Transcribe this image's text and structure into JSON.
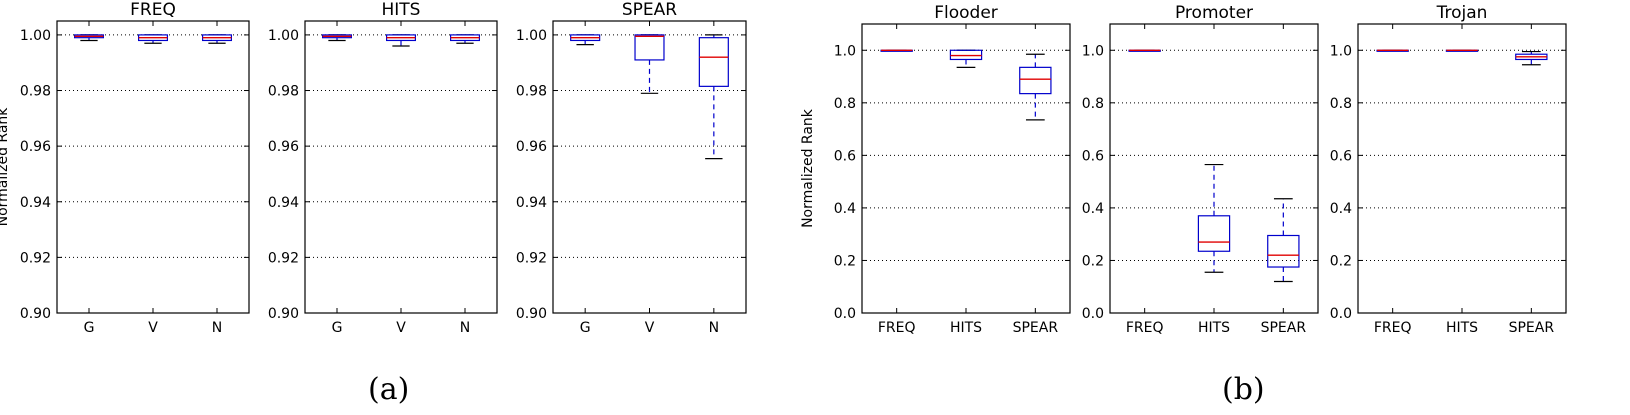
{
  "captions": {
    "a": "(a)",
    "b": "(b)"
  },
  "colors": {
    "box": "#0000cc",
    "median": "#e00000",
    "grid": "#000000",
    "axis": "#000000"
  },
  "chart_data": [
    {
      "type": "box",
      "group": "a",
      "title": "FREQ",
      "ylabel": "Normalized Rank",
      "ylim": [
        0.9,
        1.005
      ],
      "yticks": [
        0.9,
        0.92,
        0.94,
        0.96,
        0.98,
        1.0
      ],
      "ytick_labels": [
        "0.90",
        "0.92",
        "0.94",
        "0.96",
        "0.98",
        "1.00"
      ],
      "grid": true,
      "categories": [
        "G",
        "V",
        "N"
      ],
      "boxes": [
        {
          "whisker_low": 0.998,
          "q1": 0.999,
          "median": 0.9995,
          "q3": 1.0,
          "whisker_high": 1.0
        },
        {
          "whisker_low": 0.997,
          "q1": 0.998,
          "median": 0.999,
          "q3": 1.0,
          "whisker_high": 1.0
        },
        {
          "whisker_low": 0.997,
          "q1": 0.998,
          "median": 0.999,
          "q3": 1.0,
          "whisker_high": 1.0
        }
      ]
    },
    {
      "type": "box",
      "group": "a",
      "title": "HITS",
      "ylabel": "",
      "ylim": [
        0.9,
        1.005
      ],
      "yticks": [
        0.9,
        0.92,
        0.94,
        0.96,
        0.98,
        1.0
      ],
      "ytick_labels": [
        "0.90",
        "0.92",
        "0.94",
        "0.96",
        "0.98",
        "1.00"
      ],
      "grid": true,
      "categories": [
        "G",
        "V",
        "N"
      ],
      "boxes": [
        {
          "whisker_low": 0.998,
          "q1": 0.999,
          "median": 0.9995,
          "q3": 1.0,
          "whisker_high": 1.0
        },
        {
          "whisker_low": 0.996,
          "q1": 0.998,
          "median": 0.999,
          "q3": 1.0,
          "whisker_high": 1.0
        },
        {
          "whisker_low": 0.997,
          "q1": 0.998,
          "median": 0.999,
          "q3": 1.0,
          "whisker_high": 1.0
        }
      ]
    },
    {
      "type": "box",
      "group": "a",
      "title": "SPEAR",
      "ylabel": "",
      "ylim": [
        0.9,
        1.005
      ],
      "yticks": [
        0.9,
        0.92,
        0.94,
        0.96,
        0.98,
        1.0
      ],
      "ytick_labels": [
        "0.90",
        "0.92",
        "0.94",
        "0.96",
        "0.98",
        "1.00"
      ],
      "grid": true,
      "categories": [
        "G",
        "V",
        "N"
      ],
      "boxes": [
        {
          "whisker_low": 0.9965,
          "q1": 0.998,
          "median": 0.999,
          "q3": 1.0,
          "whisker_high": 1.0
        },
        {
          "whisker_low": 0.979,
          "q1": 0.991,
          "median": 0.9995,
          "q3": 1.0,
          "whisker_high": 1.0
        },
        {
          "whisker_low": 0.9555,
          "q1": 0.9815,
          "median": 0.992,
          "q3": 0.999,
          "whisker_high": 1.0
        }
      ]
    },
    {
      "type": "box",
      "group": "b",
      "title": "Flooder",
      "ylabel": "Normalized Rank",
      "ylim": [
        0.0,
        1.1
      ],
      "yticks": [
        0.0,
        0.2,
        0.4,
        0.6,
        0.8,
        1.0
      ],
      "ytick_labels": [
        "0.0",
        "0.2",
        "0.4",
        "0.6",
        "0.8",
        "1.0"
      ],
      "grid": true,
      "categories": [
        "FREQ",
        "HITS",
        "SPEAR"
      ],
      "boxes": [
        {
          "whisker_low": 1.0,
          "q1": 1.0,
          "median": 1.0,
          "q3": 1.0,
          "whisker_high": 1.0
        },
        {
          "whisker_low": 0.935,
          "q1": 0.965,
          "median": 0.98,
          "q3": 1.0,
          "whisker_high": 1.0
        },
        {
          "whisker_low": 0.735,
          "q1": 0.835,
          "median": 0.89,
          "q3": 0.935,
          "whisker_high": 0.985
        }
      ]
    },
    {
      "type": "box",
      "group": "b",
      "title": "Promoter",
      "ylabel": "",
      "ylim": [
        0.0,
        1.1
      ],
      "yticks": [
        0.0,
        0.2,
        0.4,
        0.6,
        0.8,
        1.0
      ],
      "ytick_labels": [
        "0.0",
        "0.2",
        "0.4",
        "0.6",
        "0.8",
        "1.0"
      ],
      "grid": true,
      "categories": [
        "FREQ",
        "HITS",
        "SPEAR"
      ],
      "boxes": [
        {
          "whisker_low": 1.0,
          "q1": 1.0,
          "median": 1.0,
          "q3": 1.0,
          "whisker_high": 1.0
        },
        {
          "whisker_low": 0.155,
          "q1": 0.235,
          "median": 0.27,
          "q3": 0.37,
          "whisker_high": 0.565
        },
        {
          "whisker_low": 0.12,
          "q1": 0.175,
          "median": 0.22,
          "q3": 0.295,
          "whisker_high": 0.435
        }
      ]
    },
    {
      "type": "box",
      "group": "b",
      "title": "Trojan",
      "ylabel": "",
      "ylim": [
        0.0,
        1.1
      ],
      "yticks": [
        0.0,
        0.2,
        0.4,
        0.6,
        0.8,
        1.0
      ],
      "ytick_labels": [
        "0.0",
        "0.2",
        "0.4",
        "0.6",
        "0.8",
        "1.0"
      ],
      "grid": true,
      "categories": [
        "FREQ",
        "HITS",
        "SPEAR"
      ],
      "boxes": [
        {
          "whisker_low": 1.0,
          "q1": 1.0,
          "median": 1.0,
          "q3": 1.0,
          "whisker_high": 1.0
        },
        {
          "whisker_low": 1.0,
          "q1": 1.0,
          "median": 1.0,
          "q3": 1.0,
          "whisker_high": 1.0
        },
        {
          "whisker_low": 0.945,
          "q1": 0.965,
          "median": 0.975,
          "q3": 0.985,
          "whisker_high": 0.995
        }
      ]
    }
  ]
}
